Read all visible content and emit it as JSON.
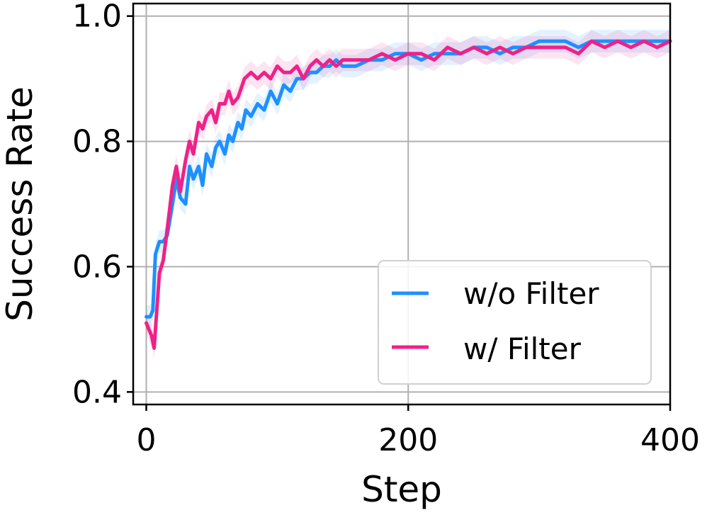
{
  "chart_data": {
    "type": "line",
    "xlabel": "Step",
    "ylabel": "Success Rate",
    "xlim": [
      -10,
      400
    ],
    "ylim": [
      0.38,
      1.02
    ],
    "xticks": [
      0,
      200,
      400
    ],
    "yticks": [
      0.4,
      0.6,
      0.8,
      1.0
    ],
    "xtick_labels": [
      "0",
      "200",
      "400"
    ],
    "ytick_labels": [
      "0.4",
      "0.6",
      "0.8",
      "1.0"
    ],
    "grid": true,
    "legend_position": "lower-right",
    "series": [
      {
        "name": "w/o Filter",
        "color": "#1e90ff",
        "x": [
          0,
          3,
          5,
          7,
          10,
          13,
          16,
          20,
          23,
          26,
          30,
          33,
          36,
          40,
          43,
          46,
          50,
          53,
          56,
          60,
          63,
          66,
          70,
          73,
          76,
          80,
          85,
          90,
          95,
          100,
          105,
          110,
          115,
          120,
          125,
          130,
          135,
          140,
          145,
          150,
          160,
          170,
          180,
          190,
          200,
          210,
          220,
          230,
          240,
          250,
          260,
          270,
          280,
          290,
          300,
          310,
          320,
          330,
          340,
          350,
          360,
          370,
          380,
          390,
          400
        ],
        "y": [
          0.52,
          0.52,
          0.53,
          0.62,
          0.64,
          0.64,
          0.65,
          0.7,
          0.74,
          0.71,
          0.7,
          0.76,
          0.74,
          0.76,
          0.73,
          0.78,
          0.76,
          0.79,
          0.8,
          0.78,
          0.81,
          0.8,
          0.83,
          0.82,
          0.85,
          0.84,
          0.86,
          0.85,
          0.88,
          0.86,
          0.89,
          0.88,
          0.9,
          0.9,
          0.91,
          0.91,
          0.92,
          0.92,
          0.93,
          0.92,
          0.92,
          0.93,
          0.93,
          0.94,
          0.94,
          0.93,
          0.94,
          0.94,
          0.94,
          0.95,
          0.95,
          0.94,
          0.95,
          0.95,
          0.96,
          0.96,
          0.96,
          0.95,
          0.96,
          0.96,
          0.96,
          0.96,
          0.96,
          0.96,
          0.96
        ]
      },
      {
        "name": "w/ Filter",
        "color": "#ee2289",
        "x": [
          0,
          2,
          4,
          6,
          8,
          10,
          13,
          16,
          20,
          23,
          26,
          30,
          33,
          36,
          40,
          43,
          46,
          50,
          53,
          56,
          60,
          63,
          66,
          70,
          75,
          80,
          85,
          90,
          95,
          100,
          105,
          110,
          115,
          120,
          125,
          130,
          135,
          140,
          145,
          150,
          160,
          170,
          180,
          190,
          200,
          210,
          220,
          230,
          240,
          250,
          260,
          270,
          280,
          290,
          300,
          310,
          320,
          330,
          340,
          350,
          360,
          370,
          380,
          390,
          400
        ],
        "y": [
          0.51,
          0.5,
          0.49,
          0.47,
          0.53,
          0.59,
          0.61,
          0.66,
          0.73,
          0.76,
          0.72,
          0.77,
          0.8,
          0.78,
          0.83,
          0.82,
          0.84,
          0.85,
          0.83,
          0.86,
          0.86,
          0.88,
          0.86,
          0.87,
          0.9,
          0.91,
          0.9,
          0.91,
          0.9,
          0.92,
          0.91,
          0.91,
          0.92,
          0.9,
          0.92,
          0.93,
          0.92,
          0.93,
          0.92,
          0.93,
          0.93,
          0.93,
          0.94,
          0.93,
          0.94,
          0.94,
          0.93,
          0.95,
          0.94,
          0.95,
          0.94,
          0.95,
          0.94,
          0.95,
          0.95,
          0.95,
          0.95,
          0.94,
          0.96,
          0.95,
          0.96,
          0.95,
          0.96,
          0.95,
          0.96
        ]
      }
    ]
  }
}
